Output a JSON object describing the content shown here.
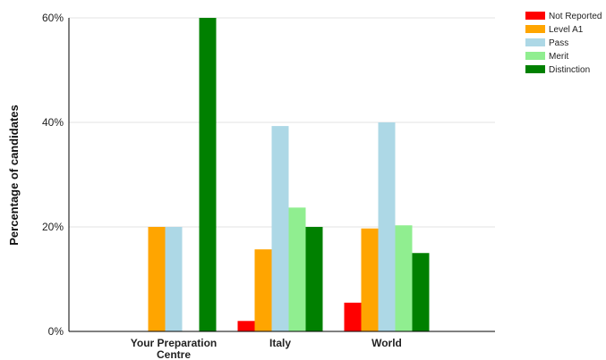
{
  "chart_data": {
    "type": "bar",
    "ylabel": "Percentage of candidates",
    "ylim": [
      0,
      60
    ],
    "yticks": [
      0,
      20,
      40,
      60
    ],
    "ytick_labels": [
      "0%",
      "20%",
      "40%",
      "60%"
    ],
    "grid": true,
    "legend_position": "top-right",
    "categories": [
      [
        "Your Preparation",
        "Centre"
      ],
      [
        "Italy"
      ],
      [
        "World"
      ]
    ],
    "series": [
      {
        "name": "Not Reported",
        "color": "#ff0000",
        "values": [
          0,
          2,
          5.5
        ]
      },
      {
        "name": "Level A1",
        "color": "#ffa500",
        "values": [
          20,
          15.7,
          19.7
        ]
      },
      {
        "name": "Pass",
        "color": "#add8e6",
        "values": [
          20,
          39.3,
          40
        ]
      },
      {
        "name": "Merit",
        "color": "#90ee90",
        "values": [
          0,
          23.7,
          20.3
        ]
      },
      {
        "name": "Distinction",
        "color": "#008000",
        "values": [
          60,
          20,
          15
        ]
      }
    ]
  }
}
